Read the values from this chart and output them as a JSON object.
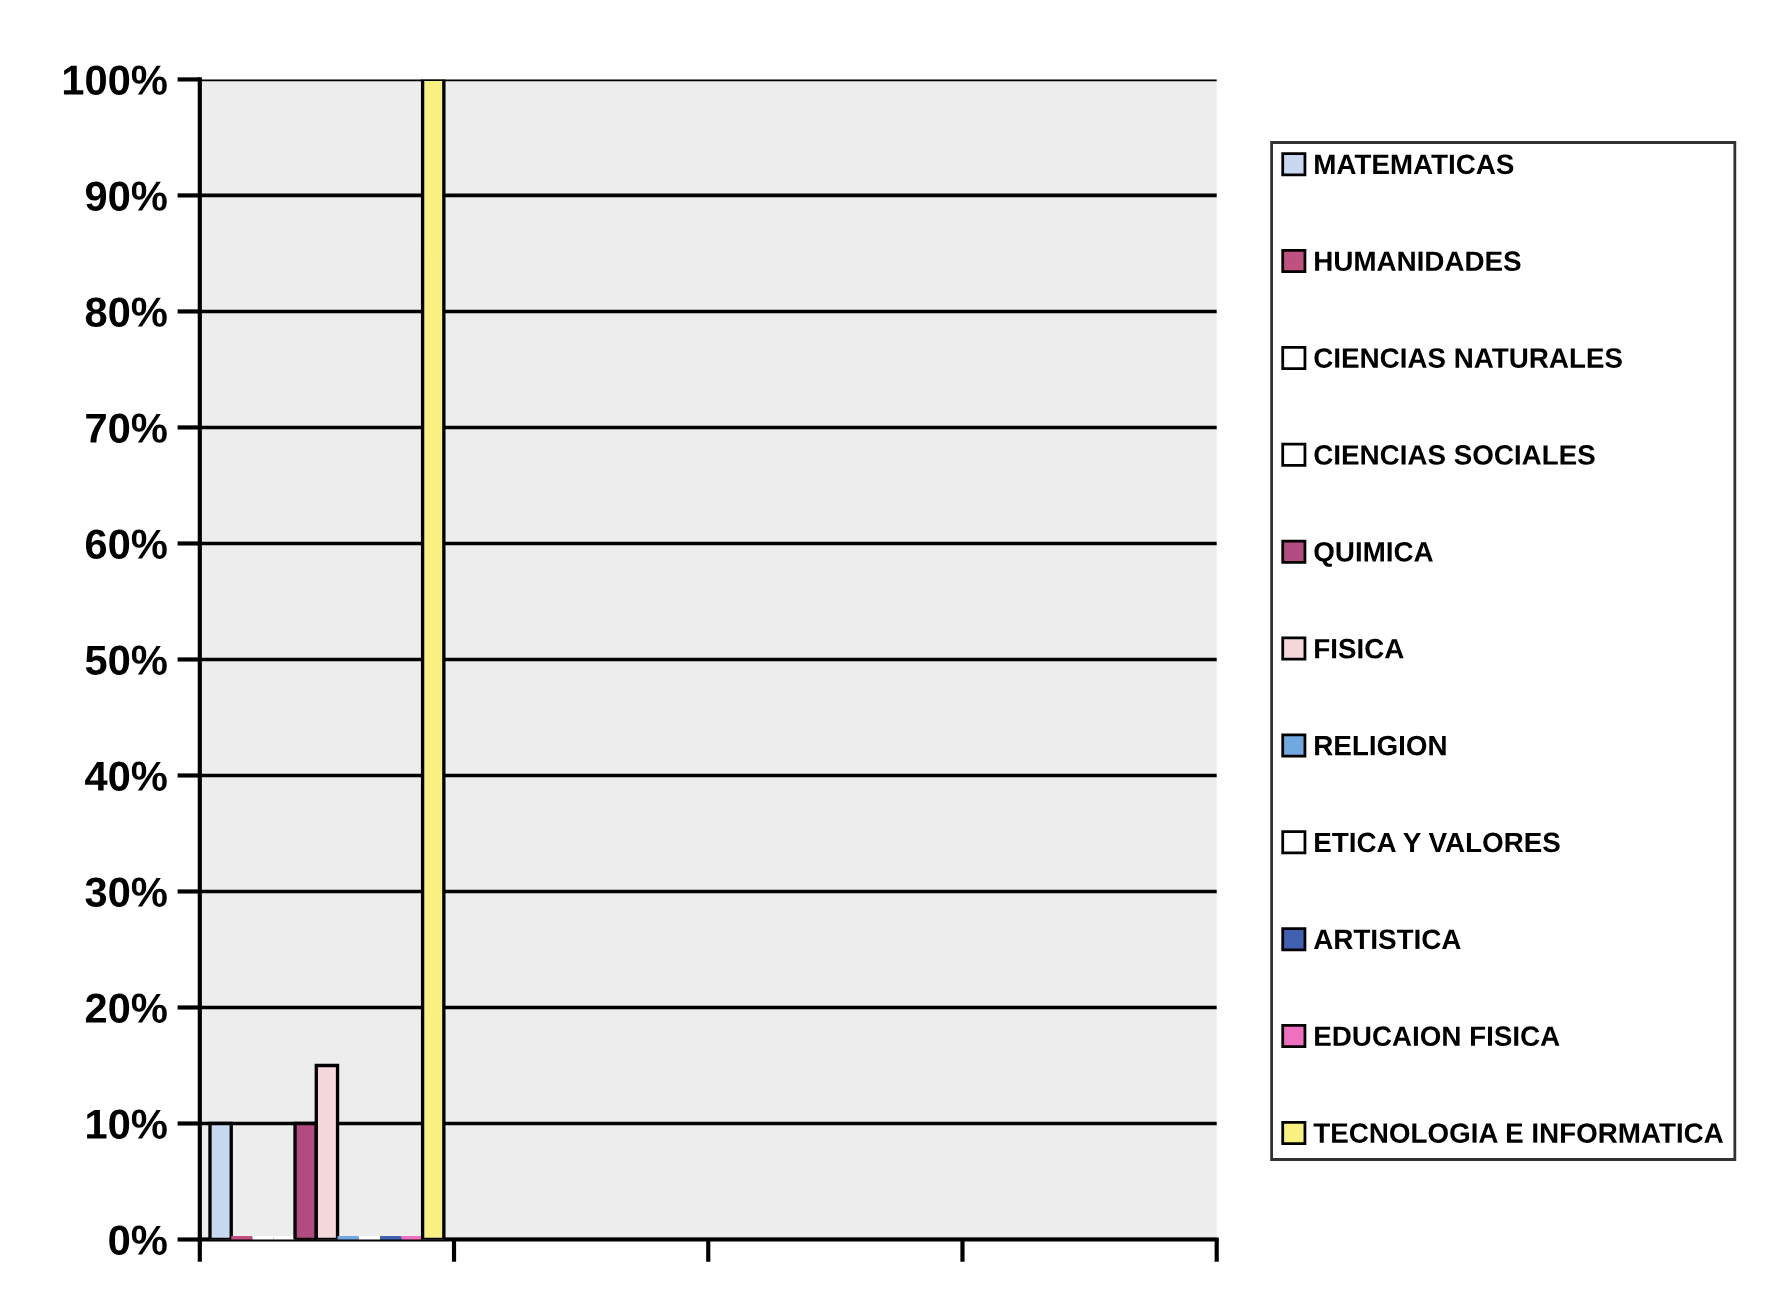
{
  "chart_data": {
    "type": "bar",
    "categories": [
      null,
      null,
      null,
      null
    ],
    "series": [
      {
        "name": "MATEMATICAS",
        "color": "#c8d8f0",
        "values": [
          10,
          null,
          null,
          null
        ]
      },
      {
        "name": "HUMANIDADES",
        "color": "#c05080",
        "values": [
          0,
          null,
          null,
          null
        ]
      },
      {
        "name": "CIENCIAS NATURALES",
        "color": "#ffffff",
        "values": [
          0,
          null,
          null,
          null
        ]
      },
      {
        "name": "CIENCIAS SOCIALES",
        "color": "#ffffff",
        "values": [
          0,
          null,
          null,
          null
        ]
      },
      {
        "name": "QUIMICA",
        "color": "#b04c80",
        "values": [
          10,
          null,
          null,
          null
        ]
      },
      {
        "name": "FISICA",
        "color": "#f4d8dc",
        "values": [
          15,
          null,
          null,
          null
        ]
      },
      {
        "name": "RELIGION",
        "color": "#70a8e0",
        "values": [
          0,
          null,
          null,
          null
        ]
      },
      {
        "name": "ETICA Y VALORES",
        "color": "#ffffff",
        "values": [
          0,
          null,
          null,
          null
        ]
      },
      {
        "name": "ARTISTICA",
        "color": "#4060b0",
        "values": [
          0,
          null,
          null,
          null
        ]
      },
      {
        "name": "EDUCAION FISICA",
        "color": "#f070c0",
        "values": [
          0,
          null,
          null,
          null
        ]
      },
      {
        "name": "TECNOLOGIA E INFORMATICA",
        "color": "#f8f080",
        "values": [
          100,
          null,
          null,
          null
        ]
      }
    ],
    "ylim": [
      0,
      100
    ],
    "yticks": [
      {
        "value": 0,
        "label": "0%"
      },
      {
        "value": 10,
        "label": "10%"
      },
      {
        "value": 20,
        "label": "20%"
      },
      {
        "value": 30,
        "label": "30%"
      },
      {
        "value": 40,
        "label": "40%"
      },
      {
        "value": 50,
        "label": "50%"
      },
      {
        "value": 60,
        "label": "60%"
      },
      {
        "value": 70,
        "label": "70%"
      },
      {
        "value": 80,
        "label": "80%"
      },
      {
        "value": 90,
        "label": "90%"
      },
      {
        "value": 100,
        "label": "100%"
      }
    ],
    "grid": "y",
    "legend": "right",
    "tick_labels": "y"
  }
}
